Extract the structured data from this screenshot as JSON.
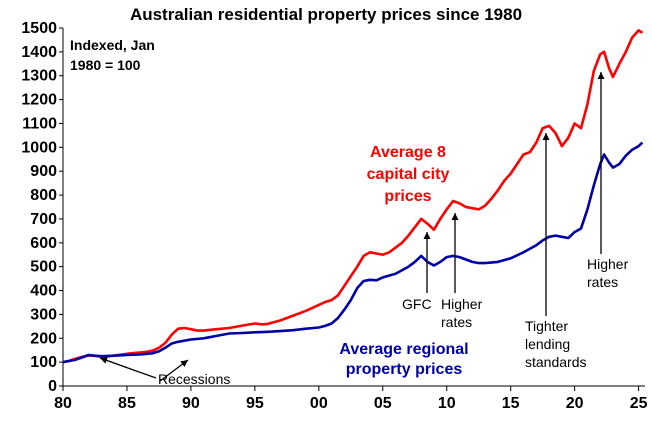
{
  "chart_data": {
    "type": "line",
    "title": "Australian residential property prices since 1980",
    "index_note": [
      "Indexed, Jan",
      "1980 = 100"
    ],
    "xlabel": "",
    "ylabel": "",
    "xlim": [
      1980,
      2025.5
    ],
    "ylim": [
      0,
      1500
    ],
    "x_ticks": [
      1980,
      1985,
      1990,
      1995,
      2000,
      2005,
      2010,
      2015,
      2020,
      2025
    ],
    "x_tick_labels": [
      "80",
      "85",
      "90",
      "95",
      "00",
      "05",
      "10",
      "15",
      "20",
      "25"
    ],
    "y_ticks": [
      0,
      100,
      200,
      300,
      400,
      500,
      600,
      700,
      800,
      900,
      1000,
      1100,
      1200,
      1300,
      1400,
      1500
    ],
    "y_tick_labels": [
      "0",
      "100",
      "200",
      "300",
      "400",
      "500",
      "600",
      "700",
      "800",
      "900",
      "1000",
      "1100",
      "1200",
      "1300",
      "1400",
      "1500"
    ],
    "grid": false,
    "series": [
      {
        "name": "Average 8 capital city prices",
        "label_lines": [
          "Average 8",
          "capital city",
          "prices"
        ],
        "color": "#ff0000",
        "points": [
          [
            1980,
            100
          ],
          [
            1980.5,
            105
          ],
          [
            1981,
            115
          ],
          [
            1981.5,
            122
          ],
          [
            1982,
            128
          ],
          [
            1982.5,
            126
          ],
          [
            1983,
            122
          ],
          [
            1983.5,
            124
          ],
          [
            1984,
            128
          ],
          [
            1985,
            135
          ],
          [
            1985.5,
            138
          ],
          [
            1986,
            140
          ],
          [
            1986.5,
            143
          ],
          [
            1987,
            148
          ],
          [
            1987.5,
            160
          ],
          [
            1988,
            180
          ],
          [
            1988.5,
            215
          ],
          [
            1989,
            240
          ],
          [
            1989.5,
            243
          ],
          [
            1990,
            238
          ],
          [
            1990.5,
            232
          ],
          [
            1991,
            232
          ],
          [
            1992,
            238
          ],
          [
            1993,
            243
          ],
          [
            1994,
            253
          ],
          [
            1995,
            262
          ],
          [
            1995.5,
            258
          ],
          [
            1996,
            260
          ],
          [
            1997,
            275
          ],
          [
            1998,
            295
          ],
          [
            1999,
            315
          ],
          [
            2000,
            340
          ],
          [
            2000.5,
            352
          ],
          [
            2001,
            360
          ],
          [
            2001.5,
            380
          ],
          [
            2002,
            420
          ],
          [
            2002.5,
            460
          ],
          [
            2003,
            500
          ],
          [
            2003.5,
            545
          ],
          [
            2004,
            560
          ],
          [
            2004.5,
            555
          ],
          [
            2005,
            550
          ],
          [
            2005.5,
            560
          ],
          [
            2006,
            580
          ],
          [
            2006.5,
            600
          ],
          [
            2007,
            630
          ],
          [
            2007.5,
            665
          ],
          [
            2008,
            700
          ],
          [
            2008.5,
            680
          ],
          [
            2009,
            655
          ],
          [
            2009.5,
            700
          ],
          [
            2010,
            740
          ],
          [
            2010.5,
            775
          ],
          [
            2011,
            765
          ],
          [
            2011.5,
            750
          ],
          [
            2012,
            745
          ],
          [
            2012.5,
            740
          ],
          [
            2013,
            755
          ],
          [
            2013.5,
            785
          ],
          [
            2014,
            820
          ],
          [
            2014.5,
            860
          ],
          [
            2015,
            890
          ],
          [
            2015.5,
            930
          ],
          [
            2016,
            970
          ],
          [
            2016.5,
            980
          ],
          [
            2017,
            1020
          ],
          [
            2017.5,
            1080
          ],
          [
            2018,
            1090
          ],
          [
            2018.5,
            1060
          ],
          [
            2019,
            1005
          ],
          [
            2019.5,
            1040
          ],
          [
            2020,
            1100
          ],
          [
            2020.5,
            1080
          ],
          [
            2021,
            1180
          ],
          [
            2021.5,
            1320
          ],
          [
            2022,
            1390
          ],
          [
            2022.3,
            1400
          ],
          [
            2022.7,
            1330
          ],
          [
            2023,
            1295
          ],
          [
            2023.5,
            1350
          ],
          [
            2024,
            1400
          ],
          [
            2024.5,
            1460
          ],
          [
            2025,
            1490
          ],
          [
            2025.3,
            1480
          ]
        ]
      },
      {
        "name": "Average regional property prices",
        "label_lines": [
          "Average regional",
          "property prices"
        ],
        "color": "#0000a8",
        "points": [
          [
            1980,
            100
          ],
          [
            1981,
            110
          ],
          [
            1981.5,
            120
          ],
          [
            1982,
            130
          ],
          [
            1982.5,
            127
          ],
          [
            1983,
            125
          ],
          [
            1984,
            127
          ],
          [
            1985,
            130
          ],
          [
            1986,
            132
          ],
          [
            1987,
            137
          ],
          [
            1987.5,
            145
          ],
          [
            1988,
            160
          ],
          [
            1988.5,
            178
          ],
          [
            1989,
            185
          ],
          [
            1990,
            195
          ],
          [
            1991,
            200
          ],
          [
            1992,
            210
          ],
          [
            1993,
            220
          ],
          [
            1994,
            222
          ],
          [
            1995,
            225
          ],
          [
            1996,
            227
          ],
          [
            1997,
            230
          ],
          [
            1998,
            234
          ],
          [
            1999,
            240
          ],
          [
            2000,
            245
          ],
          [
            2000.5,
            252
          ],
          [
            2001,
            262
          ],
          [
            2001.5,
            285
          ],
          [
            2002,
            320
          ],
          [
            2002.5,
            360
          ],
          [
            2003,
            410
          ],
          [
            2003.5,
            440
          ],
          [
            2004,
            445
          ],
          [
            2004.5,
            443
          ],
          [
            2005,
            455
          ],
          [
            2006,
            470
          ],
          [
            2007,
            500
          ],
          [
            2007.5,
            520
          ],
          [
            2008,
            545
          ],
          [
            2008.5,
            520
          ],
          [
            2009,
            505
          ],
          [
            2009.5,
            520
          ],
          [
            2010,
            540
          ],
          [
            2010.5,
            545
          ],
          [
            2011,
            540
          ],
          [
            2011.5,
            530
          ],
          [
            2012,
            520
          ],
          [
            2012.5,
            515
          ],
          [
            2013,
            515
          ],
          [
            2014,
            520
          ],
          [
            2015,
            535
          ],
          [
            2016,
            560
          ],
          [
            2017,
            590
          ],
          [
            2017.5,
            610
          ],
          [
            2018,
            625
          ],
          [
            2018.5,
            630
          ],
          [
            2019,
            625
          ],
          [
            2019.5,
            620
          ],
          [
            2020,
            645
          ],
          [
            2020.5,
            660
          ],
          [
            2021,
            740
          ],
          [
            2021.5,
            840
          ],
          [
            2022,
            930
          ],
          [
            2022.3,
            970
          ],
          [
            2022.7,
            935
          ],
          [
            2023,
            915
          ],
          [
            2023.5,
            930
          ],
          [
            2024,
            965
          ],
          [
            2024.5,
            990
          ],
          [
            2025,
            1005
          ],
          [
            2025.3,
            1020
          ]
        ]
      }
    ],
    "annotations": [
      {
        "text": "Recessions",
        "lines": [
          "Recessions"
        ]
      },
      {
        "text": "GFC",
        "lines": [
          "GFC"
        ]
      },
      {
        "text": "Higher rates",
        "lines": [
          "Higher",
          "rates"
        ]
      },
      {
        "text": "Tighter lending standards",
        "lines": [
          "Tighter",
          "lending",
          "standards"
        ]
      },
      {
        "text": "Higher rates",
        "lines": [
          "Higher",
          "rates"
        ]
      }
    ]
  }
}
